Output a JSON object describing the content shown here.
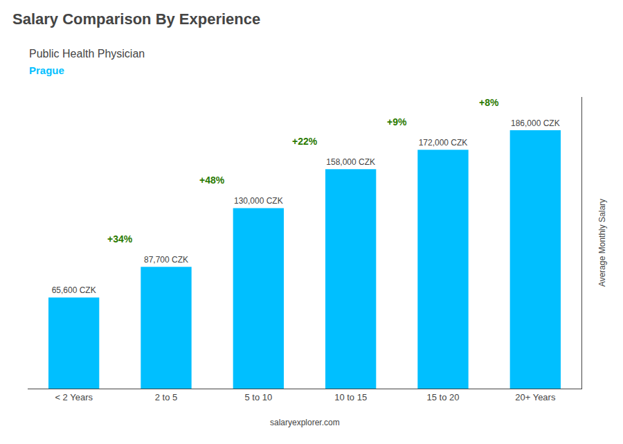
{
  "chart_data": {
    "type": "bar",
    "title": "Salary Comparison By Experience",
    "subtitle": "Public Health Physician",
    "caption": "Prague",
    "footer": "salaryexplorer.com",
    "ylabel": "Average Monthly Salary",
    "categories": [
      "< 2 Years",
      "2 to 5",
      "5 to 10",
      "10 to 15",
      "15 to 20",
      "20+ Years"
    ],
    "values": [
      65600,
      87700,
      130000,
      158000,
      172000,
      186000
    ],
    "value_labels": [
      "65,600 CZK",
      "87,700 CZK",
      "130,000 CZK",
      "158,000 CZK",
      "172,000 CZK",
      "186,000 CZK"
    ],
    "data_labels": true,
    "change_labels": [
      "+34%",
      "+48%",
      "+22%",
      "+9%",
      "+8%"
    ],
    "color": "#00bfff",
    "ylim": [
      0,
      210000
    ],
    "grid": false,
    "tick_labels": "x"
  }
}
